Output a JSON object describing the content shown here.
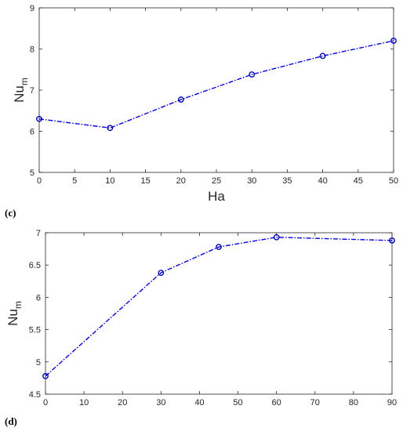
{
  "chart_data": [
    {
      "type": "line",
      "panel_label": "(c)",
      "xlabel": "Ha",
      "ylabel_main": "Nu",
      "ylabel_sub": "m",
      "xlim": [
        0,
        50
      ],
      "ylim": [
        5,
        9
      ],
      "xticks": [
        0,
        5,
        10,
        15,
        20,
        25,
        30,
        35,
        40,
        45,
        50
      ],
      "yticks": [
        5,
        6,
        7,
        8,
        9
      ],
      "x": [
        0,
        10,
        20,
        30,
        40,
        50
      ],
      "series": [
        {
          "values": [
            6.3,
            6.08,
            6.77,
            7.38,
            7.83,
            8.2
          ],
          "color": "#0000ff",
          "marker": "circle",
          "line_style": "dash-dot"
        }
      ]
    },
    {
      "type": "line",
      "panel_label": "(d)",
      "xlabel": "",
      "ylabel_main": "Nu",
      "ylabel_sub": "m",
      "xlim": [
        0,
        90
      ],
      "ylim": [
        4.5,
        7
      ],
      "xticks": [
        0,
        10,
        20,
        30,
        40,
        50,
        60,
        70,
        80,
        90
      ],
      "yticks": [
        4.5,
        5,
        5.5,
        6,
        6.5,
        7
      ],
      "x": [
        0,
        30,
        45,
        60,
        90
      ],
      "series": [
        {
          "values": [
            4.78,
            6.38,
            6.78,
            6.93,
            6.88
          ],
          "color": "#0000ff",
          "marker": "circle",
          "line_style": "dash-dot"
        }
      ]
    }
  ]
}
